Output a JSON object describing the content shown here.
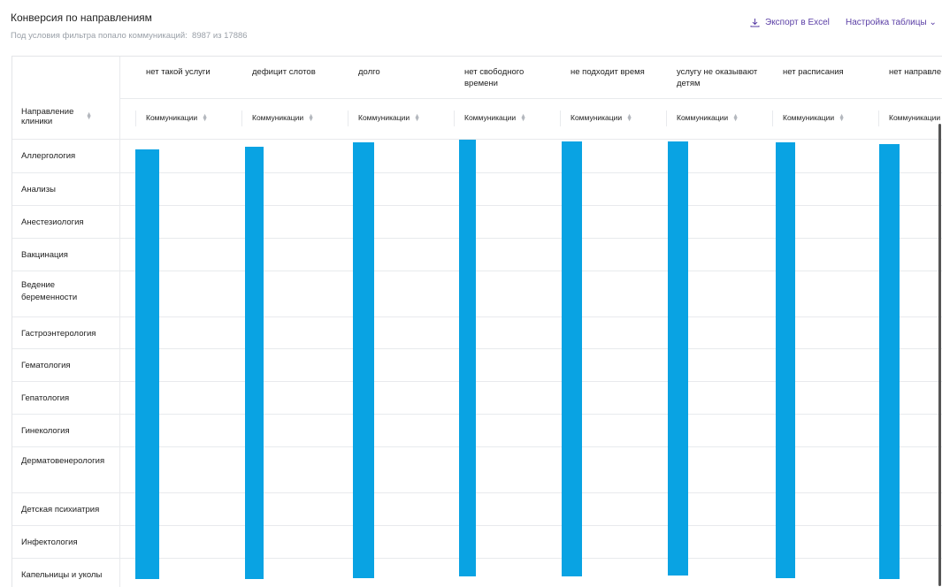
{
  "header": {
    "title": "Конверсия по направлениям",
    "subtitle": "Под условия фильтра попало коммуникаций:  8987 из 17886",
    "export": "Экспорт в Excel",
    "settings": "Настройка таблицы"
  },
  "table": {
    "first_column": "Направление клиники",
    "columns": [
      "нет такой услуги",
      "дефицит слотов",
      "долго",
      "нет свободного времени",
      "не подходит время",
      "услугу не оказывают детям",
      "нет расписания",
      "нет направле"
    ],
    "subcolumn": "Коммуникации",
    "rows": [
      "Аллергология",
      "Анализы",
      "Анестезиология",
      "Вакцинация",
      "Ведение беременности",
      "Гастроэнтерология",
      "Гематология",
      "Гепатология",
      "Гинекология",
      "Дерматовенерология",
      "Детская психиатрия",
      "Инфектология",
      "Капельницы и уколы"
    ]
  }
}
